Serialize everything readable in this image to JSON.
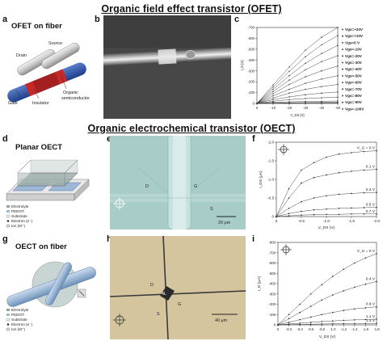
{
  "titles": {
    "ofet": "Organic field effect transistor (OFET)",
    "oect": "Organic electrochemical transistor (OECT)"
  },
  "panels": {
    "a": {
      "label": "a",
      "caption": "OFET on fiber",
      "drain": "Drain",
      "source": "Source",
      "gate": "Gate",
      "insulator": "Insulator",
      "organic1": "Organic",
      "organic2": "semiconductor"
    },
    "b": {
      "label": "b"
    },
    "c": {
      "label": "c"
    },
    "d": {
      "label": "d",
      "caption": "Planar OECT",
      "legend": [
        "Electrolyte",
        "PEDOT",
        "Substrate",
        "Electron (e⁻)",
        "Ion (M⁺)"
      ]
    },
    "e": {
      "label": "e",
      "scale": "20 μm",
      "marks": {
        "d": "D",
        "g": "G",
        "s": "S"
      }
    },
    "f": {
      "label": "f"
    },
    "g": {
      "label": "g",
      "caption": "OECT on fiber",
      "legend": [
        "Electrolyte",
        "PEDOT",
        "Substrate",
        "Electron (e⁻)",
        "Ion (M⁺)"
      ]
    },
    "h": {
      "label": "h",
      "scale": "40 μm",
      "center": "4L",
      "marks": {
        "d": "D",
        "g": "G",
        "s": "S"
      }
    },
    "i": {
      "label": "i"
    }
  },
  "colors": {
    "pedot": "#9db8d6",
    "electrolyte": "#8fa4a0",
    "substrate": "#e8e8e8",
    "micro_e": "#9fc6c3",
    "micro_h": "#d6c7a0"
  },
  "chart_data": [
    {
      "id": "c",
      "type": "line",
      "title": "",
      "xlabel": "V_DS [V]",
      "ylabel": "I_D [A]",
      "yunit": "×10⁻⁹ A",
      "xlim": [
        0,
        -50
      ],
      "ylim": [
        0,
        -700
      ],
      "xticks": [
        "0",
        "-10",
        "-20",
        "-30",
        "-40",
        "-50"
      ],
      "yticks": [
        "0",
        "-100",
        "-200",
        "-300",
        "-400",
        "-500",
        "-600",
        "-700"
      ],
      "legend_position": "right",
      "series": [
        {
          "name": "Vgs=+20V",
          "values": [
            0,
            -1,
            -1,
            -1,
            -2,
            -2
          ]
        },
        {
          "name": "Vgs=+10V",
          "values": [
            0,
            -2,
            -3,
            -3,
            -4,
            -4
          ]
        },
        {
          "name": "Vgs=0 V",
          "values": [
            0,
            -4,
            -6,
            -8,
            -9,
            -10
          ]
        },
        {
          "name": "Vgs=-10V",
          "values": [
            0,
            -10,
            -15,
            -18,
            -20,
            -22
          ]
        },
        {
          "name": "Vgs=-20V",
          "values": [
            0,
            -20,
            -35,
            -45,
            -52,
            -58
          ]
        },
        {
          "name": "Vgs=-30V",
          "values": [
            0,
            -35,
            -60,
            -80,
            -95,
            -105
          ]
        },
        {
          "name": "Vgs=-40V",
          "values": [
            0,
            -50,
            -95,
            -130,
            -155,
            -175
          ]
        },
        {
          "name": "Vgs=-50V",
          "values": [
            0,
            -70,
            -130,
            -185,
            -225,
            -255
          ]
        },
        {
          "name": "Vgs=-60V",
          "values": [
            0,
            -90,
            -175,
            -245,
            -300,
            -345
          ]
        },
        {
          "name": "Vgs=-70V",
          "values": [
            0,
            -110,
            -215,
            -310,
            -385,
            -440
          ]
        },
        {
          "name": "Vgs=-80V",
          "values": [
            0,
            -130,
            -255,
            -370,
            -460,
            -535
          ]
        },
        {
          "name": "Vgs=-90V",
          "values": [
            0,
            -150,
            -295,
            -430,
            -540,
            -625
          ]
        },
        {
          "name": "Vgs=-100V",
          "values": [
            0,
            -170,
            -335,
            -490,
            -610,
            -700
          ]
        }
      ]
    },
    {
      "id": "f",
      "type": "line",
      "xlabel": "V_DS (V)",
      "ylabel": "I_DS (μA)",
      "xlim": [
        0,
        -2.0
      ],
      "ylim": [
        0,
        -2.0
      ],
      "xticks": [
        "0",
        "-0.5",
        "-1.0",
        "-1.5",
        "-2.0"
      ],
      "yticks": [
        "0",
        "-0.5",
        "-1.0",
        "-1.5",
        "-2.0"
      ],
      "series": [
        {
          "name": "V_G = 0 V",
          "x": [
            0,
            -0.25,
            -0.5,
            -0.75,
            -1.0,
            -1.25,
            -1.5,
            -1.75,
            -2.0
          ],
          "values": [
            0,
            -0.75,
            -1.25,
            -1.45,
            -1.6,
            -1.68,
            -1.72,
            -1.75,
            -1.77
          ]
        },
        {
          "name": "0.1 V",
          "x": [
            0,
            -0.25,
            -0.5,
            -0.75,
            -1.0,
            -1.25,
            -1.5,
            -1.75,
            -2.0
          ],
          "values": [
            0,
            -0.5,
            -0.9,
            -1.05,
            -1.12,
            -1.18,
            -1.22,
            -1.25,
            -1.27
          ]
        },
        {
          "name": "0.3 V",
          "x": [
            0,
            -0.25,
            -0.5,
            -0.75,
            -1.0,
            -1.25,
            -1.5,
            -1.75,
            -2.0
          ],
          "values": [
            0,
            -0.22,
            -0.4,
            -0.5,
            -0.56,
            -0.6,
            -0.62,
            -0.64,
            -0.65
          ]
        },
        {
          "name": "0.5 V",
          "x": [
            0,
            -0.25,
            -0.5,
            -0.75,
            -1.0,
            -1.25,
            -1.5,
            -1.75,
            -2.0
          ],
          "values": [
            0,
            -0.08,
            -0.14,
            -0.18,
            -0.2,
            -0.22,
            -0.23,
            -0.24,
            -0.25
          ]
        },
        {
          "name": "0.7 V",
          "x": [
            0,
            -0.25,
            -0.5,
            -0.75,
            -1.0,
            -1.25,
            -1.5,
            -1.75,
            -2.0
          ],
          "values": [
            0,
            -0.02,
            -0.04,
            -0.05,
            -0.06,
            -0.06,
            -0.07,
            -0.07,
            -0.07
          ]
        }
      ]
    },
    {
      "id": "i",
      "type": "line",
      "xlabel": "V_DS (V)",
      "ylabel": "I_D (μA)",
      "xlim": [
        0,
        -1.8
      ],
      "ylim": [
        0,
        -800
      ],
      "xticks": [
        "0",
        "-0.2",
        "-0.4",
        "-0.6",
        "-0.8",
        "-1.0",
        "-1.2",
        "-1.4",
        "-1.6",
        "-1.8"
      ],
      "yticks": [
        "0",
        "-100",
        "-200",
        "-300",
        "-400",
        "-500",
        "-600",
        "-700",
        "-800"
      ],
      "series": [
        {
          "name": "V_G = 0 V",
          "x": [
            0,
            -0.2,
            -0.4,
            -0.6,
            -0.8,
            -1.0,
            -1.2,
            -1.4,
            -1.6,
            -1.8
          ],
          "values": [
            0,
            -100,
            -200,
            -300,
            -390,
            -470,
            -540,
            -600,
            -650,
            -690
          ]
        },
        {
          "name": "0.4 V",
          "x": [
            0,
            -0.2,
            -0.4,
            -0.6,
            -0.8,
            -1.0,
            -1.2,
            -1.4,
            -1.6,
            -1.8
          ],
          "values": [
            0,
            -60,
            -120,
            -180,
            -240,
            -290,
            -330,
            -365,
            -395,
            -420
          ]
        },
        {
          "name": "0.8 V",
          "x": [
            0,
            -0.2,
            -0.4,
            -0.6,
            -0.8,
            -1.0,
            -1.2,
            -1.4,
            -1.6,
            -1.8
          ],
          "values": [
            0,
            -25,
            -50,
            -75,
            -100,
            -120,
            -140,
            -155,
            -165,
            -175
          ]
        },
        {
          "name": "1.1 V",
          "x": [
            0,
            -0.2,
            -0.4,
            -0.6,
            -0.8,
            -1.0,
            -1.2,
            -1.4,
            -1.6,
            -1.8
          ],
          "values": [
            0,
            -8,
            -16,
            -24,
            -32,
            -38,
            -44,
            -48,
            -52,
            -55
          ]
        },
        {
          "name": "1.3 V",
          "x": [
            0,
            -0.2,
            -0.4,
            -0.6,
            -0.8,
            -1.0,
            -1.2,
            -1.4,
            -1.6,
            -1.8
          ],
          "values": [
            0,
            -2,
            -4,
            -6,
            -8,
            -10,
            -11,
            -12,
            -13,
            -14
          ]
        }
      ]
    }
  ]
}
